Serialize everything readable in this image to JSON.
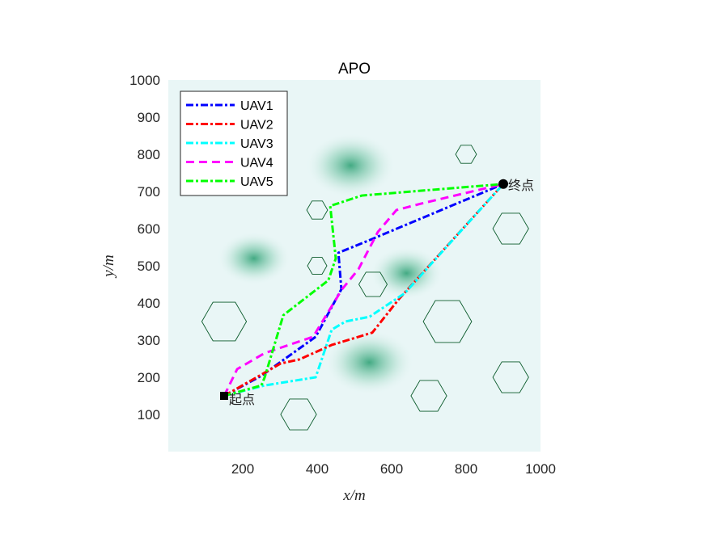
{
  "chart_data": {
    "type": "line",
    "title": "APO",
    "xlabel": "x/m",
    "ylabel": "y/m",
    "xlim": [
      0,
      1000
    ],
    "ylim": [
      0,
      1000
    ],
    "xticks": [
      200,
      400,
      600,
      800,
      1000
    ],
    "yticks": [
      100,
      200,
      300,
      400,
      500,
      600,
      700,
      800,
      900,
      1000
    ],
    "legend_position": "top-left",
    "start": {
      "label": "起点",
      "x": 150,
      "y": 150
    },
    "end": {
      "label": "终点",
      "x": 900,
      "y": 720
    },
    "series": [
      {
        "name": "UAV1",
        "color": "#0000ff",
        "dash": "dashdot",
        "points": [
          [
            150,
            150
          ],
          [
            250,
            204
          ],
          [
            396,
            309
          ],
          [
            465,
            437
          ],
          [
            457,
            535
          ],
          [
            526,
            563
          ],
          [
            900,
            720
          ]
        ]
      },
      {
        "name": "UAV2",
        "color": "#ff0000",
        "dash": "dashdot",
        "points": [
          [
            150,
            150
          ],
          [
            302,
            237
          ],
          [
            352,
            248
          ],
          [
            439,
            287
          ],
          [
            548,
            320
          ],
          [
            620,
            411
          ],
          [
            900,
            720
          ]
        ]
      },
      {
        "name": "UAV3",
        "color": "#00ffff",
        "dash": "dashdot",
        "points": [
          [
            150,
            150
          ],
          [
            259,
            178
          ],
          [
            396,
            200
          ],
          [
            439,
            328
          ],
          [
            476,
            350
          ],
          [
            541,
            363
          ],
          [
            635,
            426
          ],
          [
            900,
            720
          ]
        ]
      },
      {
        "name": "UAV4",
        "color": "#ff00ff",
        "dash": "dash",
        "points": [
          [
            150,
            150
          ],
          [
            185,
            222
          ],
          [
            259,
            265
          ],
          [
            389,
            309
          ],
          [
            467,
            437
          ],
          [
            511,
            491
          ],
          [
            563,
            591
          ],
          [
            613,
            650
          ],
          [
            678,
            667
          ],
          [
            900,
            720
          ]
        ]
      },
      {
        "name": "UAV5",
        "color": "#00ff00",
        "dash": "dashdot",
        "points": [
          [
            150,
            150
          ],
          [
            250,
            178
          ],
          [
            259,
            200
          ],
          [
            309,
            367
          ],
          [
            430,
            461
          ],
          [
            450,
            520
          ],
          [
            435,
            661
          ],
          [
            520,
            689
          ],
          [
            900,
            720
          ]
        ]
      }
    ],
    "obstacles": [
      [
        150,
        350,
        60
      ],
      [
        750,
        350,
        65
      ],
      [
        400,
        650,
        28
      ],
      [
        400,
        500,
        26
      ],
      [
        550,
        450,
        38
      ],
      [
        350,
        100,
        48
      ],
      [
        700,
        150,
        48
      ],
      [
        920,
        200,
        48
      ],
      [
        920,
        600,
        48
      ],
      [
        800,
        800,
        28
      ]
    ],
    "threat_peaks": [
      [
        490,
        770,
        110
      ],
      [
        540,
        240,
        110
      ],
      [
        230,
        520,
        90
      ],
      [
        640,
        480,
        90
      ]
    ]
  }
}
